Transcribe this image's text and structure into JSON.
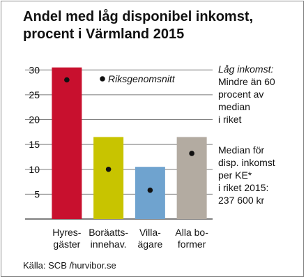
{
  "title_lines": [
    "Andel med låg disponibel inkomst,",
    "procent i Värmland 2015"
  ],
  "chart_data": {
    "type": "bar",
    "categories": [
      [
        "Hyres-",
        "gäster"
      ],
      [
        "Boräatts-",
        "innehav."
      ],
      [
        "Villa-",
        "ägare"
      ],
      [
        "Alla bo-",
        "former"
      ]
    ],
    "values": [
      30.5,
      16.5,
      10.5,
      16.5
    ],
    "reference_values": [
      28.0,
      10.0,
      5.8,
      13.2
    ],
    "reference_label": "Riksgenomsnitt",
    "bar_colors": [
      "#c8102e",
      "#c8c400",
      "#6fa3cf",
      "#b3aba1"
    ],
    "ylim": [
      0,
      32
    ],
    "yticks": [
      5,
      10,
      15,
      20,
      25,
      30
    ],
    "grid": true
  },
  "notes": {
    "low_income": [
      "Låg inkomst:",
      "Mindre än 60",
      "procent av",
      "median",
      "i riket"
    ],
    "median": [
      "Median för",
      "disp. inkomst",
      "per KE*",
      "i riket 2015:",
      "237 600 kr"
    ]
  },
  "source": "Källa: SCB /hurvibor.se"
}
